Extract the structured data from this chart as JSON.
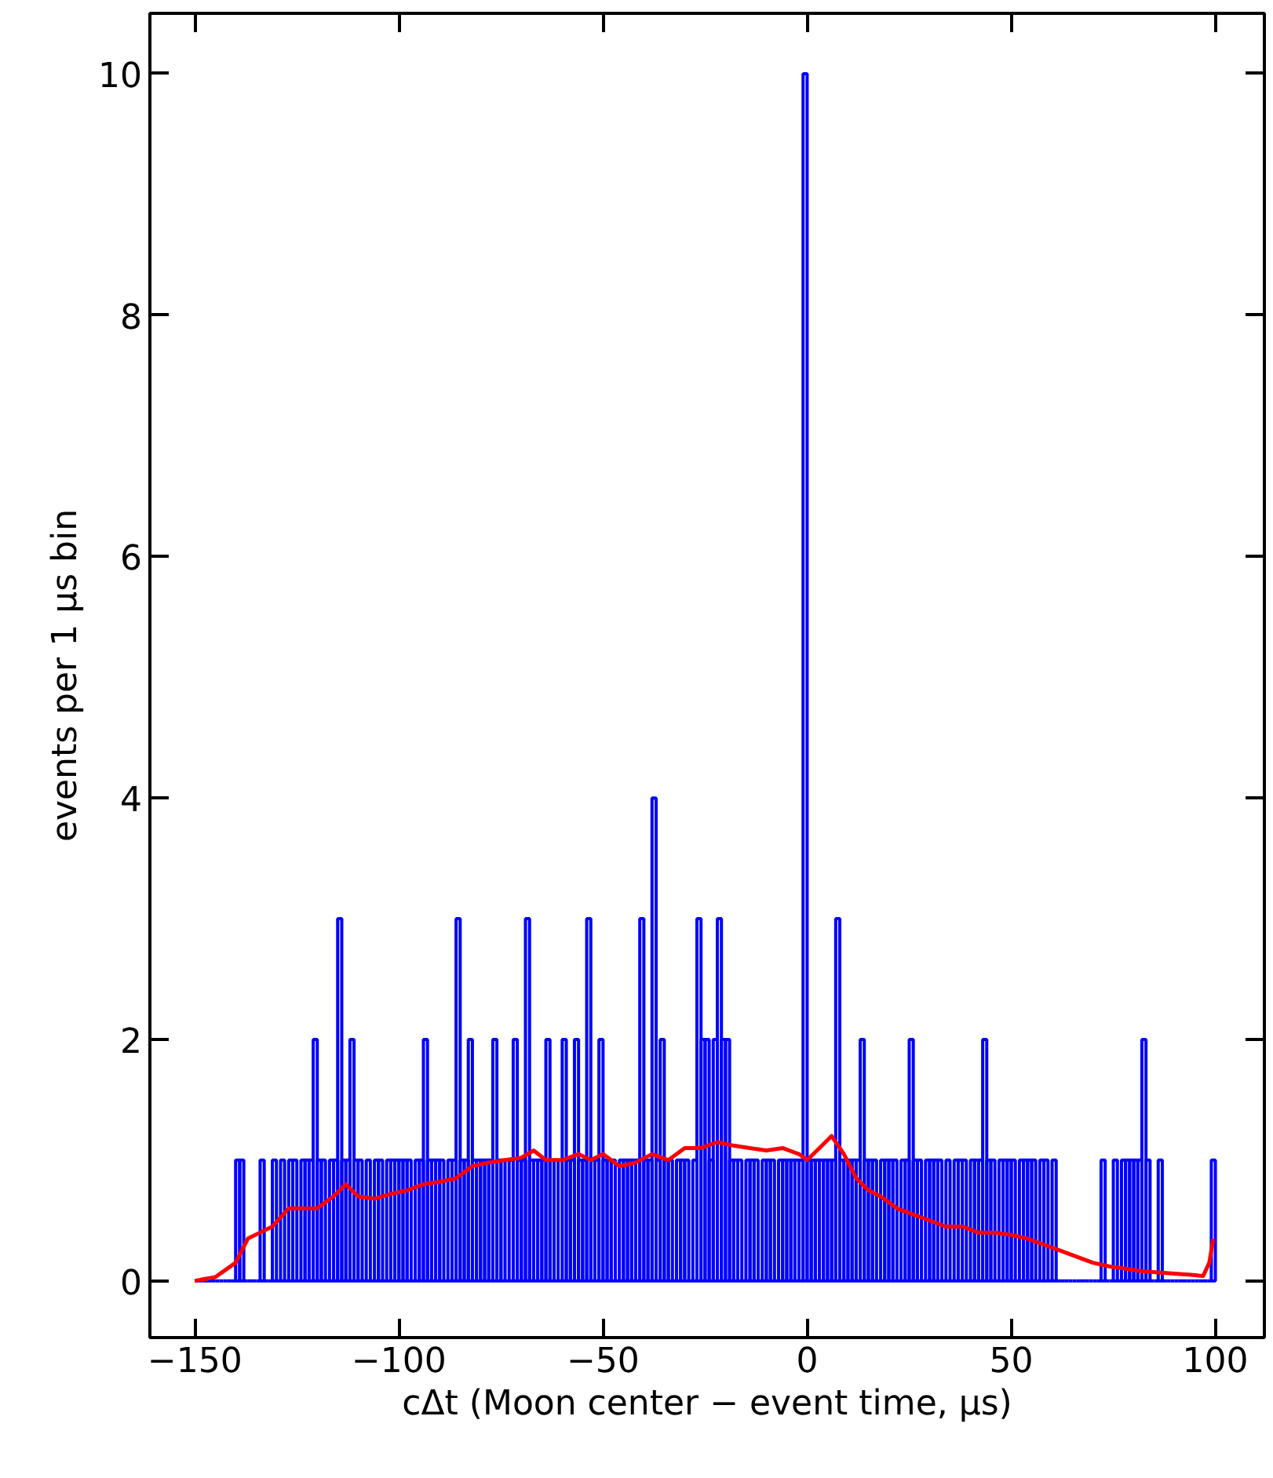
{
  "chart_data": {
    "type": "histogram",
    "xlabel": "cΔt (Moon center − event time, μs)",
    "ylabel": "events per 1 μs bin",
    "bins": [
      -150,
      -149,
      -148,
      -147,
      -146,
      -145,
      -144,
      -143,
      -142,
      -141,
      -140,
      -139,
      -138,
      -137,
      -136,
      -135,
      -134,
      -133,
      -132,
      -131,
      -130,
      -129,
      -128,
      -127,
      -126,
      -125,
      -124,
      -123,
      -122,
      -121,
      -120,
      -119,
      -118,
      -117,
      -116,
      -115,
      -114,
      -113,
      -112,
      -111,
      -110,
      -109,
      -108,
      -107,
      -106,
      -105,
      -104,
      -103,
      -102,
      -101,
      -100,
      -99,
      -98,
      -97,
      -96,
      -95,
      -94,
      -93,
      -92,
      -91,
      -90,
      -89,
      -88,
      -87,
      -86,
      -85,
      -84,
      -83,
      -82,
      -81,
      -80,
      -79,
      -78,
      -77,
      -76,
      -75,
      -74,
      -73,
      -72,
      -71,
      -70,
      -69,
      -68,
      -67,
      -66,
      -65,
      -64,
      -63,
      -62,
      -61,
      -60,
      -59,
      -58,
      -57,
      -56,
      -55,
      -54,
      -53,
      -52,
      -51,
      -50,
      -49,
      -48,
      -47,
      -46,
      -45,
      -44,
      -43,
      -42,
      -41,
      -40,
      -39,
      -38,
      -37,
      -36,
      -35,
      -34,
      -33,
      -32,
      -31,
      -30,
      -29,
      -28,
      -27,
      -26,
      -25,
      -24,
      -23,
      -22,
      -21,
      -20,
      -19,
      -18,
      -17,
      -16,
      -15,
      -14,
      -13,
      -12,
      -11,
      -10,
      -9,
      -8,
      -7,
      -6,
      -5,
      -4,
      -3,
      -2,
      -1,
      0,
      1,
      2,
      3,
      4,
      5,
      6,
      7,
      8,
      9,
      10,
      11,
      12,
      13,
      14,
      15,
      16,
      17,
      18,
      19,
      20,
      21,
      22,
      23,
      24,
      25,
      26,
      27,
      28,
      29,
      30,
      31,
      32,
      33,
      34,
      35,
      36,
      37,
      38,
      39,
      40,
      41,
      42,
      43,
      44,
      45,
      46,
      47,
      48,
      49,
      50,
      51,
      52,
      53,
      54,
      55,
      56,
      57,
      58,
      59,
      60,
      61,
      62,
      63,
      64,
      65,
      66,
      67,
      68,
      69,
      70,
      71,
      72,
      73,
      74,
      75,
      76,
      77,
      78,
      79,
      80,
      81,
      82,
      83,
      84,
      85,
      86,
      87,
      88,
      89,
      90,
      91,
      92,
      93,
      94,
      95,
      96,
      97,
      98,
      99,
      100
    ],
    "series": [
      {
        "color": "#0000ff",
        "values": [
          0,
          0,
          0,
          0,
          0,
          0,
          0,
          0,
          0,
          0,
          1,
          1,
          0,
          0,
          0,
          0,
          1,
          0,
          0,
          1,
          0,
          1,
          0,
          1,
          1,
          0,
          1,
          1,
          1,
          2,
          1,
          1,
          0,
          1,
          1,
          3,
          1,
          1,
          2,
          1,
          1,
          0,
          1,
          0,
          1,
          1,
          0,
          1,
          1,
          1,
          1,
          1,
          1,
          0,
          1,
          1,
          2,
          1,
          1,
          1,
          1,
          0,
          1,
          1,
          3,
          1,
          1,
          2,
          1,
          1,
          1,
          1,
          1,
          2,
          1,
          1,
          0,
          1,
          2,
          1,
          1,
          3,
          1,
          1,
          1,
          1,
          2,
          1,
          1,
          0,
          2,
          1,
          1,
          2,
          1,
          1,
          3,
          1,
          1,
          2,
          1,
          1,
          1,
          0,
          1,
          1,
          1,
          1,
          1,
          3,
          1,
          1,
          4,
          1,
          2,
          1,
          1,
          0,
          1,
          1,
          1,
          0,
          1,
          3,
          2,
          2,
          1,
          2,
          3,
          2,
          2,
          1,
          1,
          1,
          0,
          1,
          1,
          1,
          0,
          1,
          1,
          1,
          0,
          1,
          1,
          1,
          1,
          1,
          1,
          10,
          1,
          1,
          1,
          1,
          1,
          1,
          1,
          3,
          1,
          1,
          1,
          1,
          1,
          2,
          1,
          1,
          1,
          0,
          1,
          1,
          1,
          1,
          0,
          1,
          1,
          2,
          1,
          1,
          0,
          1,
          1,
          1,
          1,
          0,
          1,
          0,
          1,
          1,
          1,
          0,
          1,
          1,
          1,
          2,
          1,
          1,
          0,
          1,
          1,
          1,
          1,
          0,
          1,
          1,
          1,
          1,
          0,
          1,
          1,
          0,
          1,
          0,
          0,
          0,
          0,
          0,
          0,
          0,
          0,
          0,
          0,
          0,
          1,
          0,
          0,
          1,
          0,
          1,
          1,
          1,
          1,
          1,
          2,
          1,
          0,
          0,
          1,
          0,
          0,
          0,
          0,
          0,
          0,
          0,
          0,
          0,
          0,
          0,
          0,
          1
        ]
      },
      {
        "type": "line",
        "color": "#ff0000",
        "x": [
          -150,
          -145,
          -140,
          -137,
          -134,
          -131,
          -127,
          -123,
          -120,
          -116,
          -113,
          -110,
          -106,
          -102,
          -98,
          -94,
          -90,
          -86,
          -82,
          -78,
          -74,
          -70,
          -67,
          -64,
          -60,
          -56,
          -53,
          -50,
          -46,
          -42,
          -38,
          -34,
          -30,
          -26,
          -22,
          -18,
          -14,
          -10,
          -6,
          -2,
          0,
          3,
          6,
          9,
          12,
          15,
          18,
          22,
          26,
          30,
          34,
          38,
          42,
          46,
          50,
          54,
          58,
          62,
          66,
          70,
          74,
          78,
          82,
          86,
          90,
          94,
          97,
          98.5,
          99.5
        ],
        "values": [
          0,
          0.03,
          0.15,
          0.35,
          0.4,
          0.45,
          0.6,
          0.6,
          0.6,
          0.7,
          0.8,
          0.7,
          0.68,
          0.72,
          0.75,
          0.8,
          0.82,
          0.85,
          0.95,
          0.98,
          1.0,
          1.02,
          1.08,
          1.0,
          1.0,
          1.05,
          1.0,
          1.05,
          0.95,
          0.98,
          1.05,
          1.0,
          1.1,
          1.1,
          1.15,
          1.12,
          1.1,
          1.08,
          1.1,
          1.05,
          1.0,
          1.1,
          1.2,
          1.05,
          0.85,
          0.75,
          0.7,
          0.6,
          0.55,
          0.5,
          0.45,
          0.45,
          0.4,
          0.4,
          0.38,
          0.35,
          0.3,
          0.25,
          0.2,
          0.15,
          0.12,
          0.1,
          0.08,
          0.07,
          0.06,
          0.05,
          0.04,
          0.15,
          0.35
        ]
      }
    ],
    "xlim": [
      -161,
      112
    ],
    "xticks": [
      -150,
      -100,
      -50,
      0,
      50,
      100
    ],
    "ylim": [
      -0.47,
      10.5
    ],
    "yticks": [
      0,
      2,
      4,
      6,
      8,
      10
    ],
    "grid": false,
    "line_style": "solid",
    "marker": "none"
  }
}
